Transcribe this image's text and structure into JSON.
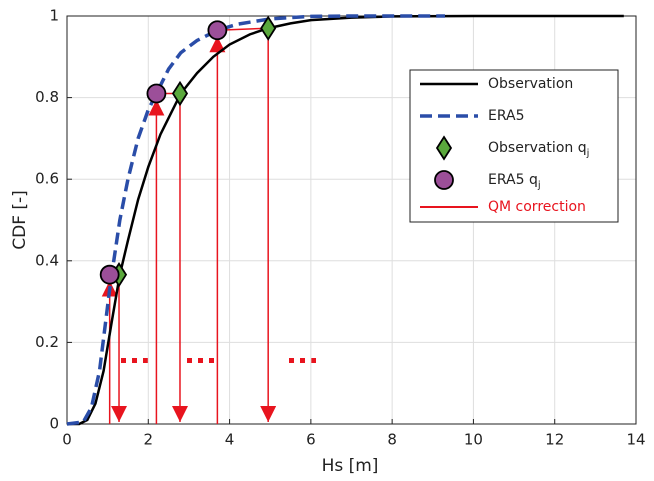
{
  "chart_data": {
    "type": "line",
    "xlabel": "Hs [m]",
    "ylabel": "CDF [-]",
    "xlim": [
      0,
      14
    ],
    "ylim": [
      0,
      1
    ],
    "xticks": [
      0,
      2,
      4,
      6,
      8,
      10,
      12,
      14
    ],
    "yticks": [
      0,
      0.2,
      0.4,
      0.6,
      0.8,
      1
    ],
    "grid": true,
    "legend": "upper right",
    "series": [
      {
        "name": "Observation",
        "color": "#000000",
        "style": "solid",
        "x": [
          0,
          0.3,
          0.5,
          0.7,
          0.9,
          1.1,
          1.3,
          1.5,
          1.75,
          2.0,
          2.3,
          2.6,
          2.8,
          3.2,
          3.6,
          4.0,
          4.5,
          4.95,
          5.5,
          6,
          7,
          8,
          10,
          13.7
        ],
        "values": [
          0,
          0,
          0.01,
          0.05,
          0.13,
          0.25,
          0.366,
          0.45,
          0.55,
          0.63,
          0.71,
          0.77,
          0.81,
          0.86,
          0.9,
          0.93,
          0.955,
          0.97,
          0.982,
          0.99,
          0.996,
          0.999,
          1,
          1
        ]
      },
      {
        "name": "ERA5",
        "color": "#2a4da8",
        "style": "dashed",
        "x": [
          0,
          0.4,
          0.6,
          0.8,
          0.95,
          1.05,
          1.1,
          1.3,
          1.5,
          1.75,
          2.0,
          2.2,
          2.5,
          2.8,
          3.2,
          3.7,
          4.2,
          5,
          6,
          7,
          9.3
        ],
        "values": [
          0,
          0.005,
          0.04,
          0.13,
          0.25,
          0.33,
          0.366,
          0.5,
          0.6,
          0.7,
          0.77,
          0.81,
          0.87,
          0.91,
          0.94,
          0.965,
          0.98,
          0.993,
          0.999,
          1,
          1
        ]
      },
      {
        "name": "Observation q",
        "subscript": "j",
        "marker": "diamond",
        "color": "#5aa83c",
        "x": [
          1.28,
          2.78,
          4.95
        ],
        "values": [
          0.366,
          0.81,
          0.97
        ]
      },
      {
        "name": "ERA5 q",
        "subscript": "j",
        "marker": "circle",
        "color": "#9c4f99",
        "x": [
          1.05,
          2.2,
          3.7
        ],
        "values": [
          0.366,
          0.81,
          0.965
        ]
      }
    ],
    "qm_correction": {
      "name": "QM correction",
      "color": "#e8141e"
    }
  }
}
